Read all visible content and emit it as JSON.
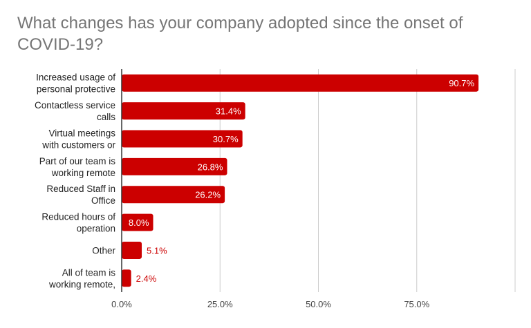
{
  "chart_data": {
    "type": "bar",
    "orientation": "horizontal",
    "title": "What changes has your company adopted since the onset of COVID-19?",
    "categories": [
      [
        "Increased usage of",
        "personal protective"
      ],
      [
        "Contactless service",
        "calls"
      ],
      [
        "Virtual meetings",
        "with customers or"
      ],
      [
        "Part of our team is",
        "working remote"
      ],
      [
        "Reduced Staff in",
        "Office"
      ],
      [
        "Reduced hours of",
        "operation"
      ],
      [
        "Other"
      ],
      [
        "All of team is",
        "working remote,"
      ]
    ],
    "values": [
      90.7,
      31.4,
      30.7,
      26.8,
      26.2,
      8.0,
      5.1,
      2.4
    ],
    "value_labels": [
      "90.7%",
      "31.4%",
      "30.7%",
      "26.8%",
      "26.2%",
      "8.0%",
      "5.1%",
      "2.4%"
    ],
    "x_ticks": [
      0,
      25,
      50,
      75,
      100
    ],
    "x_tick_labels": [
      "0.0%",
      "25.0%",
      "50.0%",
      "75.0%",
      ""
    ],
    "xlim": [
      0,
      100
    ],
    "grid": true,
    "legend": "none",
    "bar_color": "#cc0000",
    "label_inside_color": "#ffffff",
    "label_outside_color": "#cc0000"
  }
}
